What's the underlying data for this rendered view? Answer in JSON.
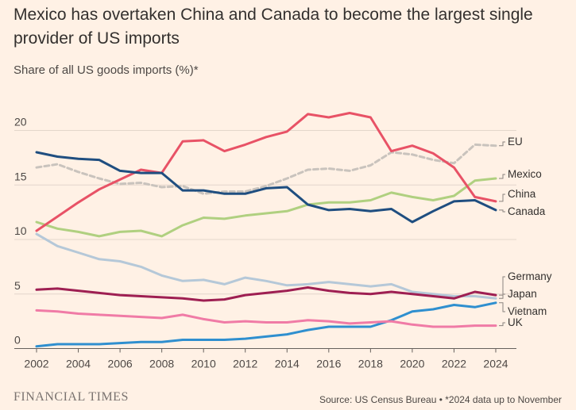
{
  "title": "Mexico has overtaken China and Canada to become the largest single provider of US imports",
  "subtitle": "Share of all US goods imports (%)*",
  "brand": "FINANCIAL TIMES",
  "source": "Source: US Census Bureau • *2024 data up to November",
  "chart_data": {
    "type": "line",
    "title": "Mexico has overtaken China and Canada to become the largest single provider of US imports",
    "ylabel": "Share of all US goods imports (%)*",
    "xlabel": "",
    "xlim": [
      2002,
      2024
    ],
    "ylim": [
      0,
      22
    ],
    "x_ticks": [
      "2002",
      "2004",
      "2006",
      "2008",
      "2010",
      "2012",
      "2014",
      "2016",
      "2018",
      "2020",
      "2022",
      "2024"
    ],
    "y_ticks": [
      "0",
      "5",
      "10",
      "15",
      "20"
    ],
    "grid": true,
    "x": [
      2002,
      2003,
      2004,
      2005,
      2006,
      2007,
      2008,
      2009,
      2010,
      2011,
      2012,
      2013,
      2014,
      2015,
      2016,
      2017,
      2018,
      2019,
      2020,
      2021,
      2022,
      2023,
      2024
    ],
    "series": [
      {
        "name": "EU",
        "color": "#c9c3bd",
        "dash": true,
        "values": [
          16.6,
          16.9,
          16.2,
          15.6,
          15.1,
          15.2,
          14.8,
          14.9,
          14.2,
          14.4,
          14.4,
          14.9,
          15.6,
          16.4,
          16.5,
          16.3,
          16.8,
          18.0,
          17.8,
          17.3,
          17.0,
          18.7,
          18.6
        ]
      },
      {
        "name": "Mexico",
        "color": "#b0d080",
        "dash": false,
        "values": [
          11.6,
          11.0,
          10.7,
          10.3,
          10.7,
          10.8,
          10.3,
          11.3,
          12.0,
          11.9,
          12.2,
          12.4,
          12.6,
          13.2,
          13.4,
          13.4,
          13.6,
          14.3,
          13.9,
          13.6,
          14.0,
          15.4,
          15.6
        ]
      },
      {
        "name": "China",
        "color": "#e85266",
        "dash": false,
        "values": [
          10.8,
          12.1,
          13.4,
          14.6,
          15.5,
          16.4,
          16.1,
          19.0,
          19.1,
          18.1,
          18.7,
          19.4,
          19.9,
          21.5,
          21.2,
          21.6,
          21.2,
          18.1,
          18.6,
          17.9,
          16.6,
          13.9,
          13.5
        ]
      },
      {
        "name": "Canada",
        "color": "#1f4e80",
        "dash": false,
        "values": [
          18.0,
          17.6,
          17.4,
          17.3,
          16.3,
          16.1,
          16.1,
          14.5,
          14.5,
          14.2,
          14.2,
          14.7,
          14.8,
          13.2,
          12.7,
          12.8,
          12.6,
          12.8,
          11.6,
          12.6,
          13.5,
          13.6,
          12.7
        ]
      },
      {
        "name": "Germany",
        "color": "#b5c8d8",
        "dash": false,
        "values": [
          10.5,
          9.4,
          8.8,
          8.2,
          8.0,
          7.5,
          6.7,
          6.2,
          6.3,
          5.9,
          6.5,
          6.2,
          5.8,
          5.9,
          6.1,
          5.9,
          5.7,
          5.9,
          5.2,
          5.0,
          4.8,
          4.8,
          4.6
        ]
      },
      {
        "name": "Japan",
        "color": "#9e1f52",
        "dash": false,
        "values": [
          5.4,
          5.5,
          5.3,
          5.1,
          4.9,
          4.8,
          4.7,
          4.6,
          4.4,
          4.5,
          4.9,
          5.1,
          5.3,
          5.6,
          5.3,
          5.1,
          5.0,
          5.2,
          5.0,
          4.8,
          4.6,
          5.2,
          4.9
        ]
      },
      {
        "name": "Vietnam",
        "color": "#2f8fcf",
        "dash": false,
        "values": [
          0.2,
          0.4,
          0.4,
          0.4,
          0.5,
          0.6,
          0.6,
          0.8,
          0.8,
          0.8,
          0.9,
          1.1,
          1.3,
          1.7,
          2.0,
          2.0,
          2.0,
          2.6,
          3.4,
          3.6,
          4.0,
          3.8,
          4.2
        ]
      },
      {
        "name": "UK",
        "color": "#f07ba6",
        "dash": false,
        "values": [
          3.5,
          3.4,
          3.2,
          3.1,
          3.0,
          2.9,
          2.8,
          3.1,
          2.7,
          2.4,
          2.5,
          2.4,
          2.4,
          2.6,
          2.5,
          2.3,
          2.4,
          2.5,
          2.2,
          2.0,
          2.0,
          2.1,
          2.1
        ]
      }
    ],
    "labels": [
      "EU",
      "Mexico",
      "China",
      "Canada",
      "Germany",
      "Japan",
      "Vietnam",
      "UK"
    ]
  }
}
